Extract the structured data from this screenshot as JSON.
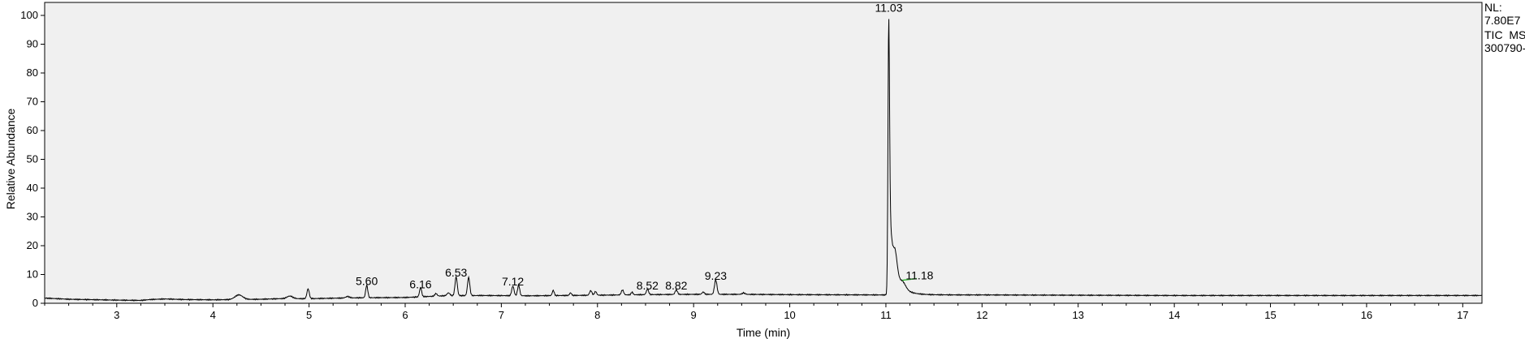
{
  "chart_data": {
    "type": "line",
    "title": "",
    "xlabel": "Time (min)",
    "ylabel": "Relative Abundance",
    "xlim": [
      2.25,
      17.2
    ],
    "ylim": [
      0,
      100
    ],
    "x_ticks": [
      3,
      4,
      5,
      6,
      7,
      8,
      9,
      10,
      11,
      12,
      13,
      14,
      15,
      16,
      17
    ],
    "y_ticks": [
      0,
      10,
      20,
      30,
      40,
      50,
      60,
      70,
      80,
      90,
      100
    ],
    "grid": false,
    "info": {
      "nl_label": "NL:",
      "nl_value": "7.80E7",
      "trace": "TIC  MS",
      "file": "300790-"
    },
    "series": [
      {
        "name": "TIC",
        "baseline": [
          [
            2.25,
            1.8
          ],
          [
            2.5,
            1.4
          ],
          [
            3,
            1.1
          ],
          [
            3.25,
            1.0
          ],
          [
            3.35,
            1.3
          ],
          [
            3.5,
            1.5
          ],
          [
            3.7,
            1.3
          ],
          [
            4.0,
            1.2
          ],
          [
            4.5,
            1.4
          ],
          [
            4.7,
            1.6
          ],
          [
            5.0,
            1.6
          ],
          [
            5.5,
            1.9
          ],
          [
            6.0,
            2.0
          ],
          [
            6.4,
            2.6
          ],
          [
            6.8,
            2.7
          ],
          [
            7.3,
            2.6
          ],
          [
            8.0,
            2.8
          ],
          [
            8.5,
            3.0
          ],
          [
            9.0,
            3.1
          ],
          [
            9.5,
            3.1
          ],
          [
            10.0,
            3.0
          ],
          [
            10.9,
            2.9
          ],
          [
            12.0,
            2.9
          ],
          [
            14.0,
            2.7
          ],
          [
            17.2,
            2.7
          ]
        ],
        "peaks": [
          {
            "rt": 4.27,
            "height": 1.6,
            "width": 0.04
          },
          {
            "rt": 4.8,
            "height": 0.9,
            "width": 0.03
          },
          {
            "rt": 4.99,
            "height": 3.4,
            "width": 0.012
          },
          {
            "rt": 5.4,
            "height": 0.5,
            "width": 0.02
          },
          {
            "rt": 5.6,
            "height": 4.3,
            "width": 0.011
          },
          {
            "rt": 6.16,
            "height": 3.2,
            "width": 0.011
          },
          {
            "rt": 6.32,
            "height": 0.9,
            "width": 0.012
          },
          {
            "rt": 6.45,
            "height": 1.0,
            "width": 0.015
          },
          {
            "rt": 6.53,
            "height": 6.5,
            "width": 0.012
          },
          {
            "rt": 6.66,
            "height": 6.3,
            "width": 0.012
          },
          {
            "rt": 7.12,
            "height": 3.3,
            "width": 0.012
          },
          {
            "rt": 7.18,
            "height": 3.7,
            "width": 0.011
          },
          {
            "rt": 7.54,
            "height": 1.8,
            "width": 0.01
          },
          {
            "rt": 7.72,
            "height": 0.9,
            "width": 0.01
          },
          {
            "rt": 7.93,
            "height": 1.6,
            "width": 0.012
          },
          {
            "rt": 7.98,
            "height": 1.3,
            "width": 0.011
          },
          {
            "rt": 8.26,
            "height": 1.7,
            "width": 0.012
          },
          {
            "rt": 8.36,
            "height": 0.9,
            "width": 0.01
          },
          {
            "rt": 8.52,
            "height": 1.8,
            "width": 0.012
          },
          {
            "rt": 8.82,
            "height": 1.6,
            "width": 0.012
          },
          {
            "rt": 9.1,
            "height": 0.8,
            "width": 0.012
          },
          {
            "rt": 9.23,
            "height": 5.0,
            "width": 0.013
          },
          {
            "rt": 9.52,
            "height": 0.5,
            "width": 0.015
          },
          {
            "rt": 11.03,
            "height": 97.0,
            "width": 0.008,
            "tail": 0.042
          },
          {
            "rt": 11.1,
            "height": 8.0,
            "width": 0.02,
            "tail": 0.07
          },
          {
            "rt": 11.18,
            "height": 2.5,
            "width": 0.03,
            "tail": 0.12
          }
        ]
      }
    ],
    "peak_labels": [
      {
        "rt": 5.6,
        "text": "5.60",
        "y": 6.3
      },
      {
        "rt": 6.16,
        "text": "6.16",
        "y": 5.2
      },
      {
        "rt": 6.53,
        "text": "6.53",
        "y": 9.3
      },
      {
        "rt": 7.12,
        "text": "7.12",
        "y": 6.2
      },
      {
        "rt": 8.52,
        "text": "8.52",
        "y": 4.8
      },
      {
        "rt": 8.82,
        "text": "8.82",
        "y": 4.8
      },
      {
        "rt": 9.23,
        "text": "9.23",
        "y": 8.1
      },
      {
        "rt": 11.03,
        "text": "11.03",
        "y": 101.2
      },
      {
        "rt": 11.35,
        "text": "11.18",
        "y": 8.3
      }
    ]
  }
}
